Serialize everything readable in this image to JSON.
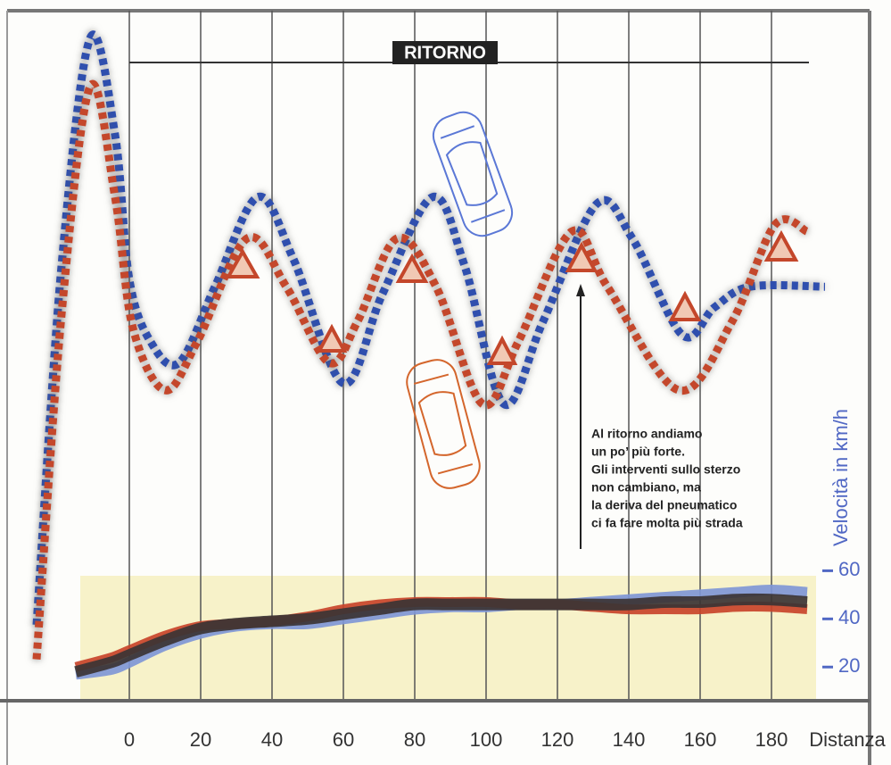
{
  "chart_data": [
    {
      "type": "line",
      "label": "RITORNO",
      "xlim": [
        -30,
        195
      ],
      "ylim": [
        0,
        100
      ],
      "series": [
        {
          "color": "#2f4fae",
          "x": [
            -26,
            -19,
            -11,
            -4,
            0,
            6,
            14,
            24,
            36,
            46,
            60,
            71,
            85,
            94,
            105,
            116,
            131,
            141,
            155,
            164,
            174,
            195
          ],
          "values": [
            11,
            63,
            96,
            82,
            61,
            52,
            49,
            60,
            73,
            64,
            46,
            59,
            73,
            63,
            43,
            55,
            72,
            67,
            53,
            57,
            60,
            60
          ]
        },
        {
          "color": "#c4472b",
          "x": [
            -26,
            -19,
            -11,
            -4,
            1,
            10,
            19,
            33,
            44,
            56,
            64,
            75,
            86,
            99,
            109,
            124,
            134,
            154,
            169,
            181,
            190
          ],
          "values": [
            6,
            56,
            89,
            73,
            54,
            45,
            52,
            67,
            60,
            49,
            55,
            67,
            60,
            43,
            52,
            68,
            60,
            45,
            55,
            69,
            68
          ]
        }
      ]
    },
    {
      "type": "line",
      "xlabel": "Distanza",
      "ylabel": "Velocità in km/h",
      "xlim": [
        -30,
        195
      ],
      "xticks": [
        0,
        20,
        40,
        60,
        80,
        100,
        120,
        140,
        160,
        180
      ],
      "ylim": [
        6,
        62
      ],
      "yticks": [
        20,
        40,
        60
      ],
      "annotation": [
        "Al ritorno andiamo",
        "un po’ più forte.",
        "Gli interventi sullo sterzo",
        "non cambiano, ma",
        "la deriva del pneumatico",
        "ci fa fare molta più strada"
      ],
      "x": [
        -15,
        -5,
        0,
        10,
        20,
        30,
        40,
        50,
        60,
        70,
        80,
        90,
        100,
        110,
        120,
        130,
        140,
        150,
        160,
        170,
        180,
        190
      ],
      "series": [
        {
          "color": "#7f97d6",
          "values": [
            17,
            19,
            22,
            29,
            34,
            37,
            38,
            38,
            40,
            42,
            44,
            45,
            45,
            46,
            46,
            47,
            48,
            49,
            50,
            51,
            52,
            51
          ]
        },
        {
          "color": "#c8442a",
          "values": [
            20,
            24,
            27,
            33,
            37,
            38,
            39,
            41,
            44,
            46,
            47,
            47,
            47,
            46,
            46,
            45,
            44,
            44,
            44,
            45,
            45,
            44
          ]
        },
        {
          "color": "#3b3434",
          "values": [
            18,
            22,
            25,
            31,
            36,
            38,
            39,
            40,
            42,
            44,
            46,
            46,
            46,
            46,
            46,
            46,
            46,
            47,
            47,
            48,
            48,
            47
          ]
        }
      ]
    }
  ]
}
